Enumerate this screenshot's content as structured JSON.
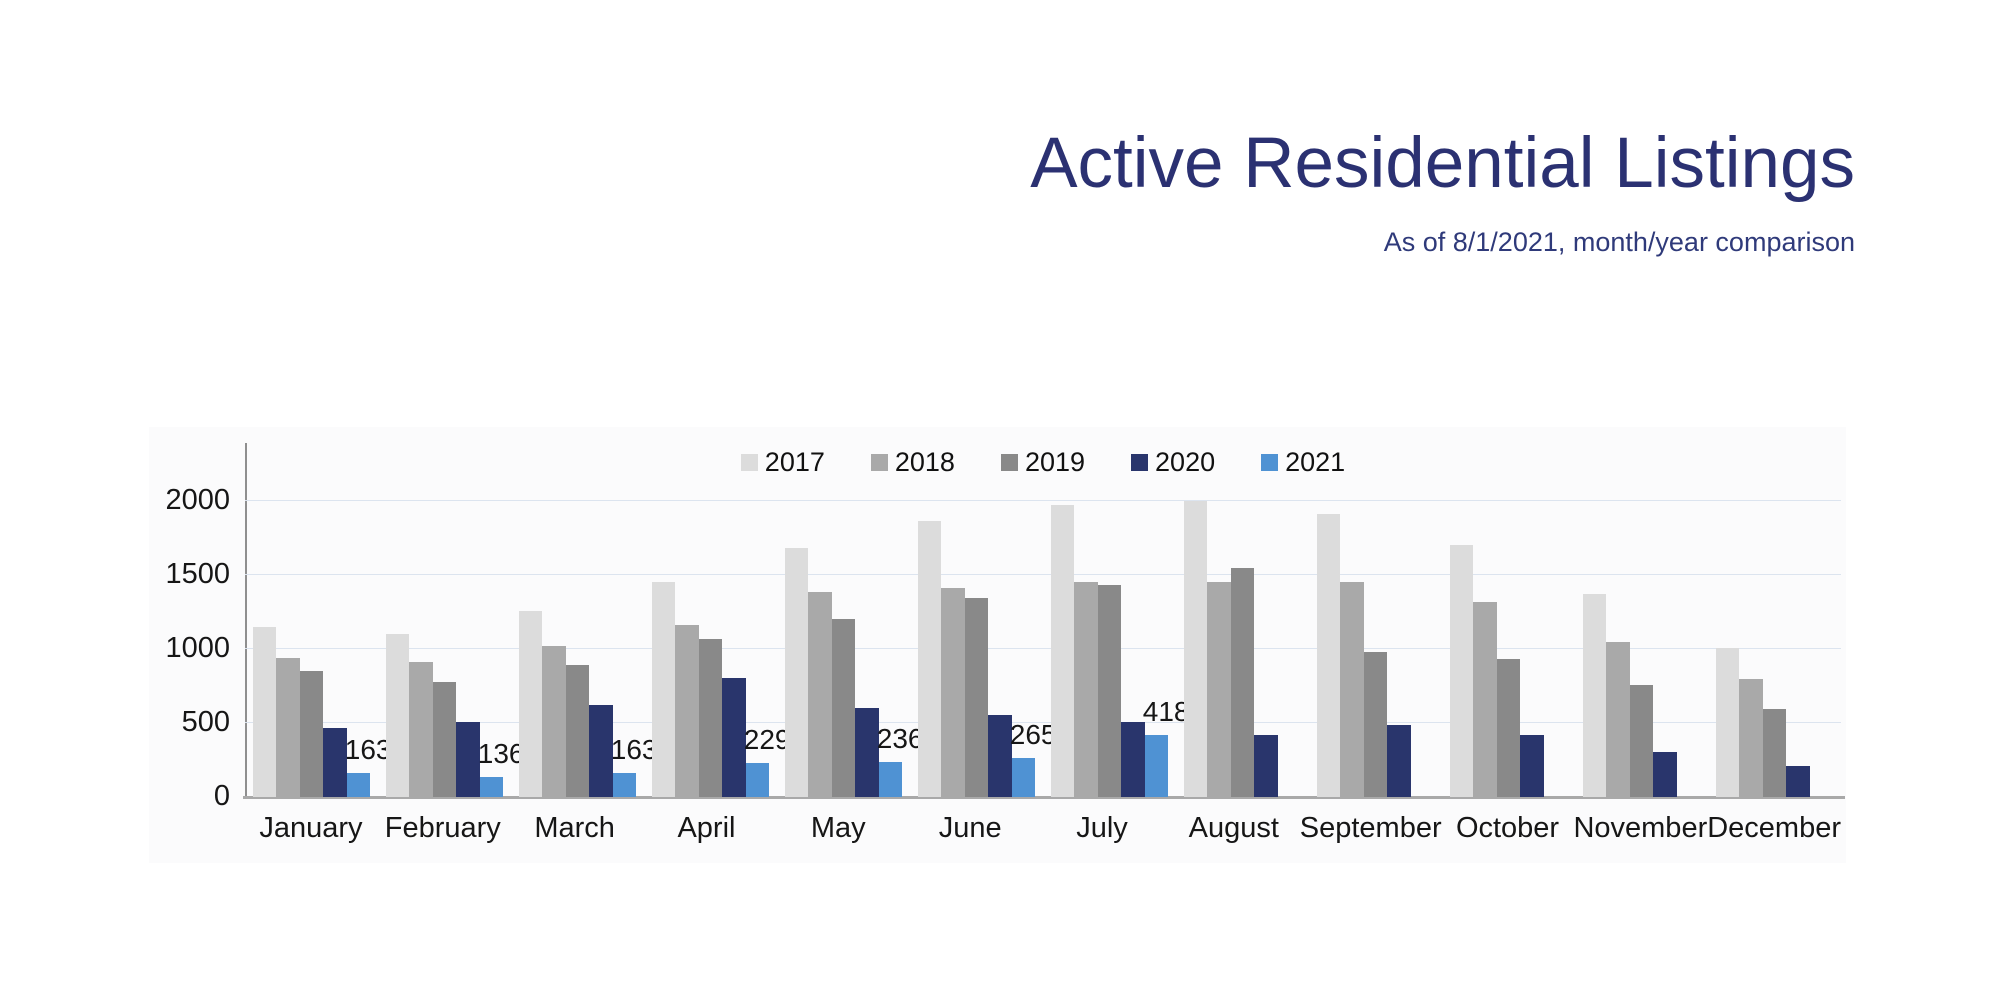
{
  "header": {
    "title": "Active Residential Listings",
    "subtitle": "As of 8/1/2021, month/year comparison"
  },
  "colors": {
    "title_text": "#2b3172",
    "subtitle_text": "#2f3a7a",
    "axis_line": "#8f8f8f",
    "baseline": "#a9a9a9",
    "gridline": "#dce4ef",
    "tick_text": "#161616"
  },
  "chart_data": {
    "type": "bar",
    "title": "Active Residential Listings",
    "subtitle": "As of 8/1/2021, month/year comparison",
    "categories": [
      "January",
      "February",
      "March",
      "April",
      "May",
      "June",
      "July",
      "August",
      "September",
      "October",
      "November",
      "December"
    ],
    "series": [
      {
        "name": "2017",
        "color": "#dcdcdc",
        "values": [
          1150,
          1100,
          1255,
          1455,
          1685,
          1865,
          1975,
          2000,
          1915,
          1705,
          1370,
          1010
        ]
      },
      {
        "name": "2018",
        "color": "#a9a9a9",
        "values": [
          940,
          915,
          1020,
          1160,
          1385,
          1410,
          1455,
          1455,
          1455,
          1320,
          1050,
          800
        ]
      },
      {
        "name": "2019",
        "color": "#898989",
        "values": [
          850,
          775,
          890,
          1070,
          1205,
          1345,
          1435,
          1550,
          980,
          935,
          755,
          595
        ]
      },
      {
        "name": "2020",
        "color": "#29356c",
        "values": [
          465,
          510,
          620,
          805,
          600,
          555,
          510,
          420,
          485,
          420,
          305,
          210
        ]
      },
      {
        "name": "2021",
        "color": "#4f92d3",
        "show_labels": true,
        "values": [
          163,
          136,
          163,
          229,
          236,
          265,
          418,
          null,
          null,
          null,
          null,
          null
        ]
      }
    ],
    "data_labels": {
      "series": "2021",
      "values": [
        163,
        136,
        163,
        229,
        236,
        265,
        418
      ]
    },
    "ylabel": "",
    "ylim": [
      0,
      2390
    ],
    "yticks": [
      0,
      500,
      1000,
      1500,
      2000
    ],
    "grid": true,
    "legend_position": "top-center",
    "legend_entries": [
      "2017",
      "2018",
      "2019",
      "2020",
      "2021"
    ]
  }
}
